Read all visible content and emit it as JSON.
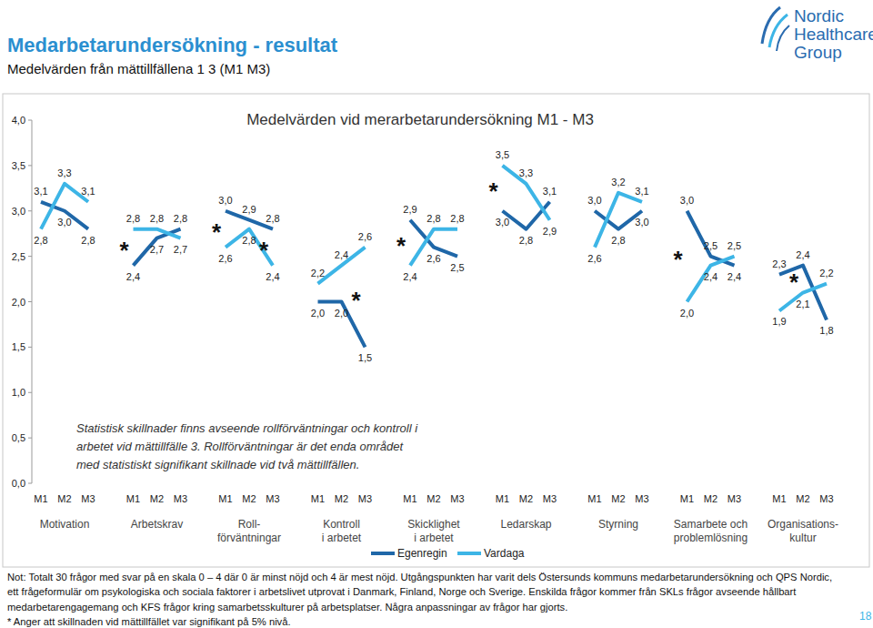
{
  "header": {
    "title": "Medarbetarundersökning - resultat",
    "subtitle": "Medelvärden från mättillfällena 1 3 (M1 M3)",
    "logo": [
      "Nordic",
      "Healthcare",
      "Group"
    ],
    "page_number": "18"
  },
  "chart_data": {
    "type": "line",
    "title": "Medelvärden vid merarbetarundersökning M1 - M3",
    "categories": [
      "M1",
      "M2",
      "M3",
      "M1",
      "M2",
      "M3",
      "M1",
      "M2",
      "M3",
      "M1",
      "M2",
      "M3",
      "M1",
      "M2",
      "M3",
      "M1",
      "M2",
      "M3",
      "M1",
      "M2",
      "M3",
      "M1",
      "M2",
      "M3",
      "M1",
      "M2",
      "M3"
    ],
    "groups": [
      "Motivation",
      "Arbetskrav",
      "Roll-\nförväntningar",
      "Kontroll\ni arbetet",
      "Skicklighet\ni arbetet",
      "Ledarskap",
      "Styrning",
      "Samarbete och\nproblemlösning",
      "Organisations-\nkultur"
    ],
    "series": [
      {
        "name": "Egenregin",
        "color": "#1f67a8",
        "values": [
          3.1,
          3.0,
          2.8,
          2.4,
          2.7,
          2.8,
          3.0,
          2.9,
          2.8,
          2.0,
          2.0,
          1.5,
          2.9,
          2.6,
          2.5,
          3.0,
          2.8,
          3.1,
          3.0,
          2.8,
          3.0,
          3.0,
          2.5,
          2.4,
          2.3,
          2.4,
          1.8
        ],
        "value_labels": [
          "3,1",
          "3,0",
          "2,8",
          "2,4",
          "2,7",
          "2,8",
          "3,0",
          "2,9",
          "2,8",
          "2,0",
          "2,0",
          "1,5",
          "2,9",
          "2,6",
          "2,5",
          "3,0",
          "2,8",
          "3,1",
          "3,0",
          "2,8",
          "3,0",
          "3,0",
          "2,5",
          "2,4",
          "2,3",
          "2,4",
          "1,8"
        ]
      },
      {
        "name": "Vardaga",
        "color": "#3db5e6",
        "values": [
          2.8,
          3.3,
          3.1,
          2.8,
          2.8,
          2.7,
          2.6,
          2.8,
          2.4,
          2.2,
          2.4,
          2.6,
          2.4,
          2.8,
          2.8,
          3.5,
          3.3,
          2.9,
          2.6,
          3.2,
          3.1,
          2.0,
          2.4,
          2.5,
          1.9,
          2.1,
          2.2
        ],
        "value_labels": [
          "2,8",
          "3,3",
          "3,1",
          "2,8",
          "2,8",
          "2,7",
          "2,6",
          "2,8",
          "2,4",
          "2,2",
          "2,4",
          "2,6",
          "2,4",
          "2,8",
          "2,8",
          "3,5",
          "3,3",
          "2,9",
          "2,6",
          "3,2",
          "3,1",
          "2,0",
          "2,4",
          "2,5",
          "1,9",
          "2,1",
          "2,2"
        ]
      }
    ],
    "ylim": [
      0,
      4
    ],
    "yticks": [
      {
        "value": 0,
        "label": "0,0"
      },
      {
        "value": 0.5,
        "label": "0,5"
      },
      {
        "value": 1,
        "label": "1,0"
      },
      {
        "value": 1.5,
        "label": "1,5"
      },
      {
        "value": 2,
        "label": "2,0"
      },
      {
        "value": 2.5,
        "label": "2,5"
      },
      {
        "value": 3,
        "label": "3,0"
      },
      {
        "value": 3.5,
        "label": "3,5"
      },
      {
        "value": 4,
        "label": "4,0"
      }
    ],
    "grid": false,
    "data_labels": true,
    "legend": "bottom",
    "significance_marker": "*",
    "significant": [
      false,
      false,
      false,
      true,
      false,
      false,
      true,
      false,
      true,
      false,
      false,
      true,
      true,
      false,
      false,
      true,
      false,
      false,
      false,
      false,
      false,
      true,
      false,
      false,
      false,
      true,
      false
    ],
    "annotation": "Statistisk skillnader finns avseende rollförväntningar och kontroll i arbetet vid mättillfälle 3. Rollförväntningar är det enda området med statistiskt signifikant skillnade vid två mättillfällen."
  },
  "notes": {
    "text": "Not: Totalt 30 frågor med svar på en skala 0 – 4 där 0 är minst nöjd och 4 är mest nöjd. Utgångspunkten har varit dels Östersunds kommuns medarbetarundersökning och QPS Nordic, ett frågeformulär om psykologiska och sociala faktorer i arbetslivet utprovat i Danmark, Finland, Norge och Sverige. Enskilda frågor kommer från SKLs frågor avseende hållbart medarbetarengagemang och KFS frågor kring samarbetsskulturer på arbetsplatser. Några anpassningar av frågor har gjorts.",
    "footnote": "* Anger att skillnaden vid mättillfället var signifikant på 5% nivå."
  }
}
